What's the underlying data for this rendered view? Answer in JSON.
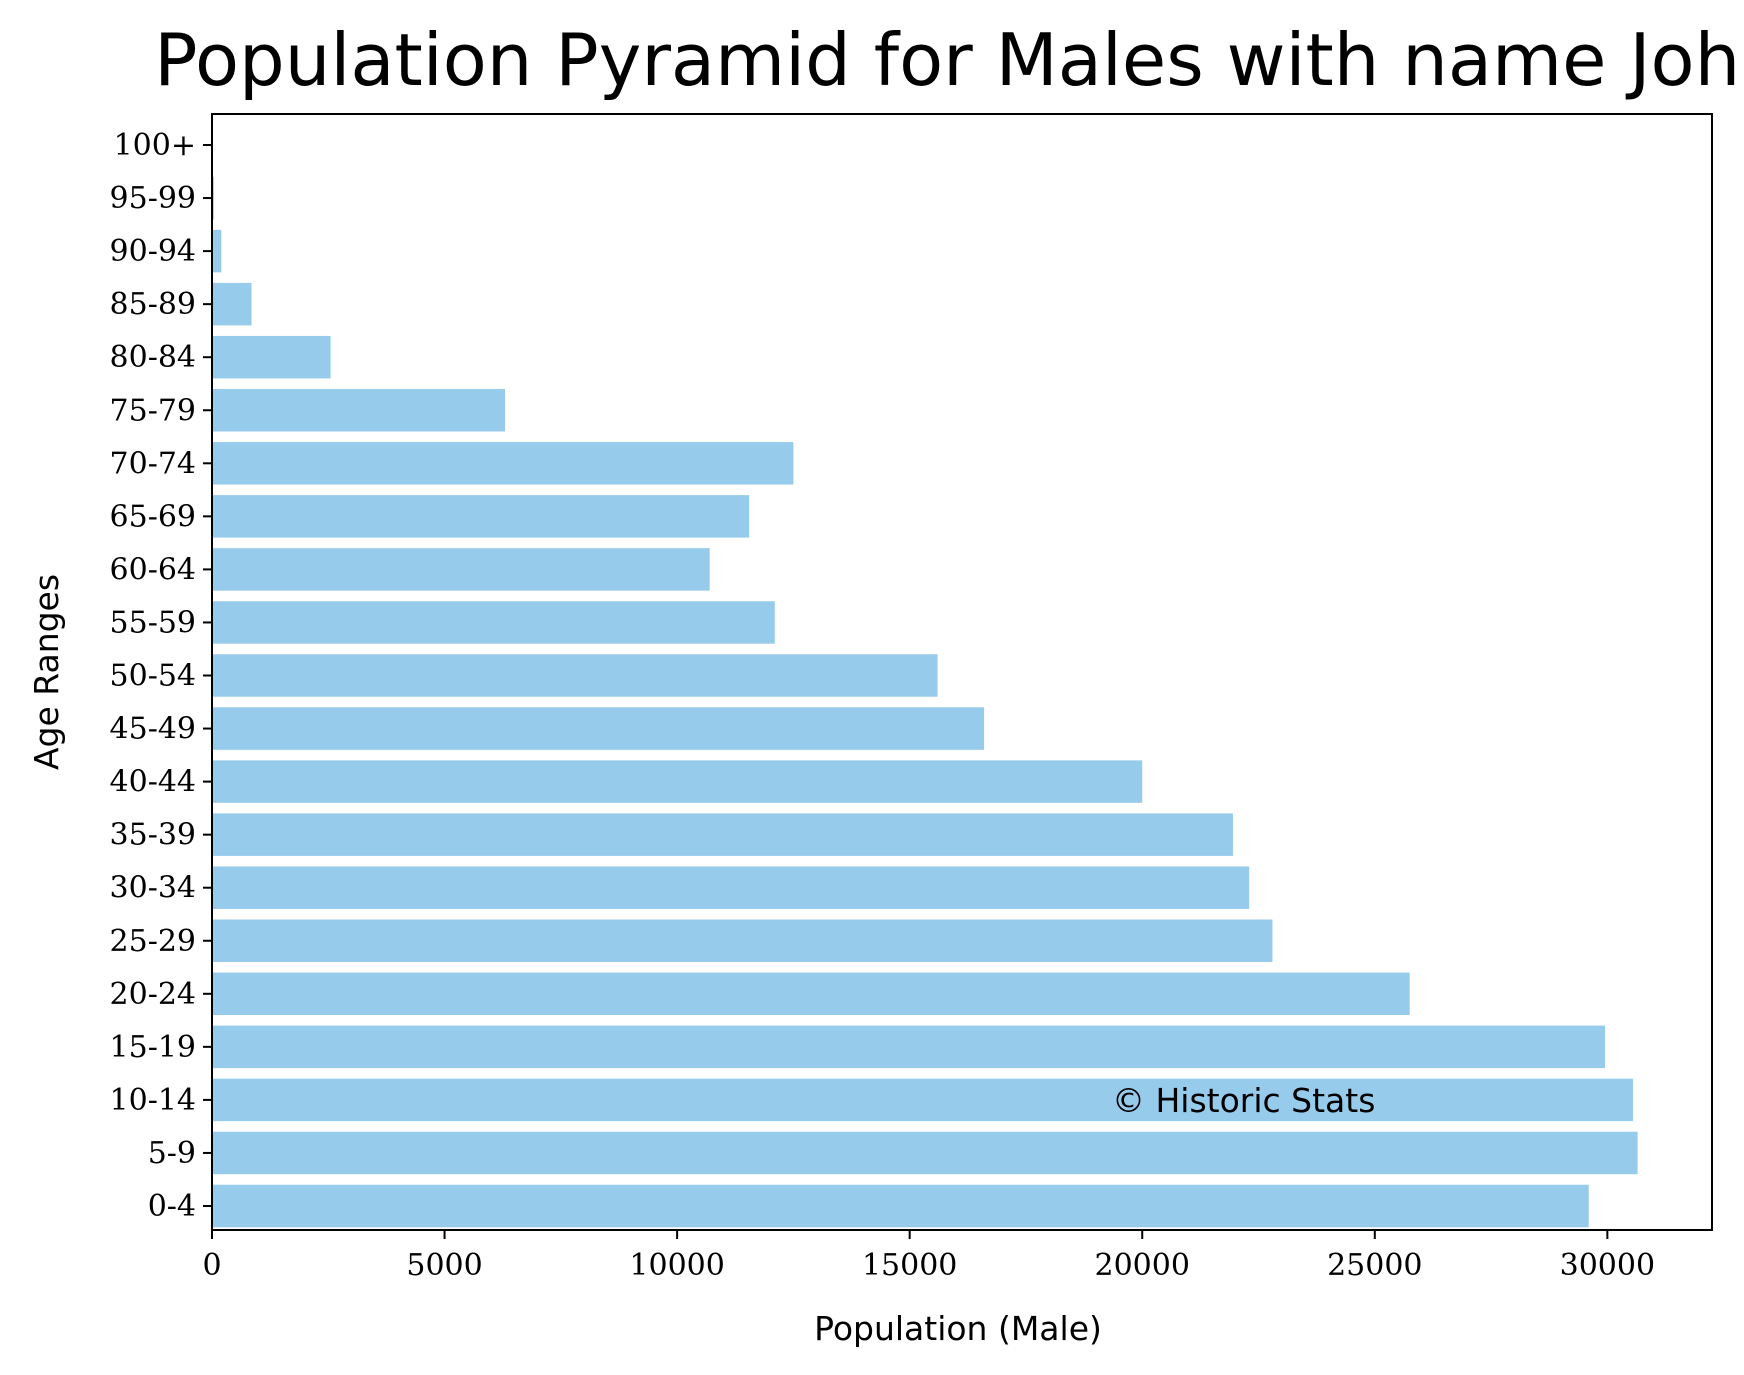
{
  "chart_data": {
    "type": "bar",
    "orientation": "horizontal",
    "title": "Population Pyramid for Males with name John",
    "xlabel": "Population (Male)",
    "ylabel": "Age Ranges",
    "categories": [
      "0-4",
      "5-9",
      "10-14",
      "15-19",
      "20-24",
      "25-29",
      "30-34",
      "35-39",
      "40-44",
      "45-49",
      "50-54",
      "55-59",
      "60-64",
      "65-69",
      "70-74",
      "75-79",
      "80-84",
      "85-89",
      "90-94",
      "95-99",
      "100+"
    ],
    "values": [
      29600,
      30650,
      30550,
      29950,
      25750,
      22800,
      22300,
      21950,
      20000,
      16600,
      15600,
      12100,
      10700,
      11550,
      12500,
      6300,
      2550,
      850,
      200,
      40,
      5
    ],
    "xlim": [
      0,
      32250
    ],
    "xticks": [
      0,
      5000,
      10000,
      15000,
      20000,
      25000,
      30000
    ],
    "bar_color": "#97cbec",
    "grid": false,
    "annotation": "© Historic Stats"
  }
}
